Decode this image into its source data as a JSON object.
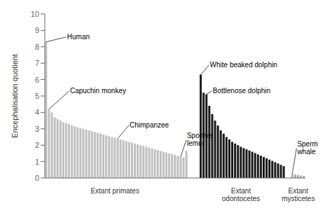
{
  "chart_data": {
    "type": "bar",
    "ylabel": "Encephalisation quotient",
    "ylim": [
      0,
      10
    ],
    "yticks": [
      0,
      1,
      2,
      3,
      4,
      5,
      6,
      7,
      8,
      9,
      10
    ],
    "grid": false,
    "series": [
      {
        "name": "Extant primates",
        "color": "#c0c0c0",
        "values": [
          8.3,
          4.2,
          4.0,
          3.7,
          3.6,
          3.5,
          3.4,
          3.35,
          3.3,
          3.2,
          3.15,
          3.1,
          3.05,
          3.0,
          2.95,
          2.9,
          2.85,
          2.8,
          2.75,
          2.7,
          2.65,
          2.6,
          2.55,
          2.5,
          2.45,
          2.4,
          2.35,
          2.3,
          2.25,
          2.2,
          2.15,
          2.1,
          2.05,
          2.0,
          1.95,
          1.9,
          1.85,
          1.8,
          1.75,
          1.7,
          1.65,
          1.6,
          1.55,
          1.5,
          1.45,
          1.4,
          1.35,
          1.3,
          1.25,
          1.65
        ]
      },
      {
        "name": "Extant\nodontocetes",
        "color": "#1a1a1a",
        "values": [
          6.3,
          5.2,
          5.1,
          4.4,
          3.9,
          3.5,
          3.2,
          2.9,
          2.7,
          2.5,
          2.35,
          2.2,
          2.1,
          2.0,
          1.9,
          1.82,
          1.75,
          1.68,
          1.6,
          1.52,
          1.44,
          1.36,
          1.28,
          1.2,
          1.12,
          1.04,
          0.96,
          0.88,
          0.8,
          0.72
        ]
      },
      {
        "name": "Extant\nmysticetes",
        "color": "#b0b0b0",
        "values": [
          0.28,
          0.22,
          0.18,
          0.15,
          0.12
        ]
      }
    ],
    "annotations": [
      {
        "text": "Human",
        "series": "Extant primates",
        "index": 0
      },
      {
        "text": "Capuchin monkey",
        "series": "Extant primates",
        "index": 1
      },
      {
        "text": "Chimpanzee",
        "series": "Extant primates",
        "index": 25
      },
      {
        "text": "Sportive\nlemur",
        "series": "Extant primates",
        "index": 47
      },
      {
        "text": "White beaked dolphin",
        "series": "Extant\nodontocetes",
        "index": 0
      },
      {
        "text": "Bottlenose dolphin",
        "series": "Extant\nodontocetes",
        "index": 2
      },
      {
        "text": "Sperm\nwhale",
        "series": "Extant\nmysticetes",
        "index": 0
      }
    ]
  }
}
